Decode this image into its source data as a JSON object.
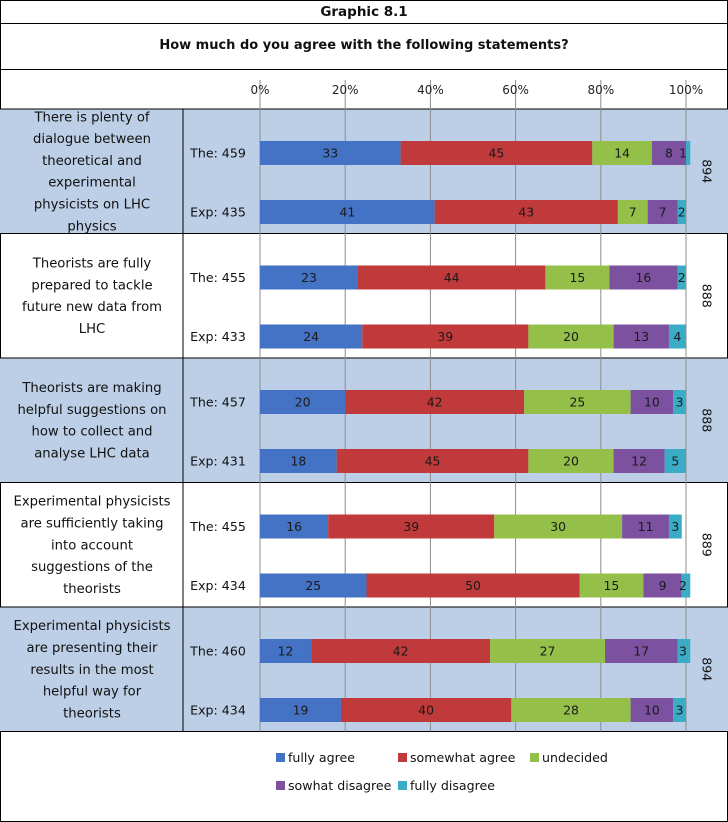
{
  "header": {
    "title": "Graphic 8.1",
    "subtitle": "How much do you agree with the following statements?"
  },
  "colors": {
    "fully agree": "#4472c4",
    "somewhat agree": "#c0393b",
    "undecided": "#94bf48",
    "sowhat disagree": "#7c51a0",
    "fully disagree": "#3aacc6",
    "band": "#bccfe6"
  },
  "chart_data": {
    "type": "bar",
    "orientation": "horizontal",
    "stacked": "percent",
    "title": "Graphic 8.1",
    "subtitle": "How much do you agree with the following statements?",
    "xlim": [
      0,
      100
    ],
    "x_ticks": [
      "0%",
      "20%",
      "40%",
      "60%",
      "80%",
      "100%"
    ],
    "grid": true,
    "legend_position": "bottom",
    "legend": [
      "fully agree",
      "somewhat agree",
      "undecided",
      "sowhat disagree",
      "fully disagree"
    ],
    "groups": [
      {
        "question": "There is plenty of dialogue between theoretical and experimental physicists on LHC physics",
        "total": "894",
        "rows": [
          {
            "label": "The: 459",
            "values": [
              33,
              45,
              14,
              8,
              1
            ]
          },
          {
            "label": "Exp: 435",
            "values": [
              41,
              43,
              7,
              7,
              2
            ]
          }
        ]
      },
      {
        "question": "Theorists are fully prepared to tackle future new data from LHC",
        "total": "888",
        "rows": [
          {
            "label": "The: 455",
            "values": [
              23,
              44,
              15,
              16,
              2
            ]
          },
          {
            "label": "Exp: 433",
            "values": [
              24,
              39,
              20,
              13,
              4
            ]
          }
        ]
      },
      {
        "question": "Theorists are making helpful suggestions on how to collect and analyse LHC data",
        "total": "888",
        "rows": [
          {
            "label": "The: 457",
            "values": [
              20,
              42,
              25,
              10,
              3
            ]
          },
          {
            "label": "Exp: 431",
            "values": [
              18,
              45,
              20,
              12,
              5
            ]
          }
        ]
      },
      {
        "question": "Experimental physicists are sufficiently taking into account suggestions of the theorists",
        "total": "889",
        "rows": [
          {
            "label": "The: 455",
            "values": [
              16,
              39,
              30,
              11,
              3
            ]
          },
          {
            "label": "Exp: 434",
            "values": [
              25,
              50,
              15,
              9,
              2
            ]
          }
        ]
      },
      {
        "question": "Experimental physicists are presenting their results in the most helpful way for theorists",
        "total": "894",
        "rows": [
          {
            "label": "The: 460",
            "values": [
              12,
              42,
              27,
              17,
              3
            ]
          },
          {
            "label": "Exp: 434",
            "values": [
              19,
              40,
              28,
              10,
              3
            ]
          }
        ]
      }
    ]
  }
}
